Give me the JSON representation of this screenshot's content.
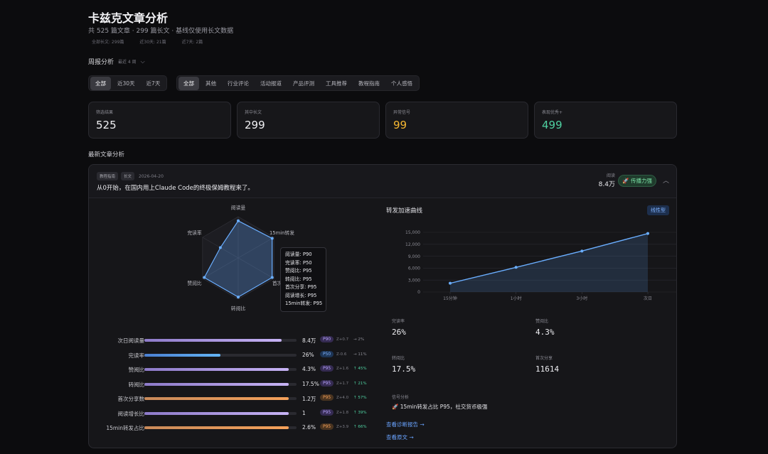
{
  "header": {
    "title": "卡兹克文章分析",
    "subtitle": "共 525 篇文章 · 299 篇长文 · 基线仅使用长文数据",
    "meta": [
      "全部长文: 299篇",
      "近30天: 21篇",
      "近7天: 2篇"
    ]
  },
  "weekly": {
    "label": "周报分析",
    "range": "最近 4 周"
  },
  "time_filter": [
    "全部",
    "近30天",
    "近7天"
  ],
  "category_filter": [
    "全部",
    "其他",
    "行业评论",
    "活动报道",
    "产品评测",
    "工具推荐",
    "教程指南",
    "个人感悟"
  ],
  "cards": [
    {
      "label": "筛选结果",
      "value": "525",
      "color": "#f0f0f3"
    },
    {
      "label": "其中长文",
      "value": "299",
      "color": "#f0f0f3"
    },
    {
      "label": "异常信号",
      "value": "99",
      "color": "#f5b731"
    },
    {
      "label": "表现优秀+",
      "value": "499",
      "color": "#4fd1a1"
    }
  ],
  "section_title": "最新文章分析",
  "article": {
    "tags": [
      "教程指南",
      "长文"
    ],
    "date": "2026-04-20",
    "title": "从0开始，在国内用上Claude Code的终极保姆教程来了。",
    "read_label": "阅读",
    "read_value": "8.4万",
    "badge": "🚀 传播力强"
  },
  "radar": {
    "axes": [
      "阅读量",
      "15min转发",
      "首次分享",
      "转阅比",
      "赞阅比",
      "完读率"
    ],
    "percentiles": [
      90,
      95,
      95,
      95,
      95,
      50
    ]
  },
  "tooltip": [
    "阅读量: P90",
    "完读率: P50",
    "赞阅比: P95",
    "转阅比: P95",
    "首次分享: P95",
    "阅读增长: P95",
    "15min转发: P95"
  ],
  "bars": [
    {
      "label": "次日阅读量",
      "value": "8.4万",
      "pct": "P90",
      "z": "Z+0.7",
      "delta": "→ 2%",
      "fill": 0.9,
      "color": "#b39ddb",
      "up": false
    },
    {
      "label": "完读率",
      "value": "26%",
      "pct": "P50",
      "z": "Z-0.6",
      "delta": "→ 11%",
      "fill": 0.5,
      "color": "#64b5f6",
      "up": false
    },
    {
      "label": "赞阅比",
      "value": "4.3%",
      "pct": "P95",
      "z": "Z+1.6",
      "delta": "↑ 45%",
      "fill": 0.95,
      "color": "#b39ddb",
      "up": true
    },
    {
      "label": "转阅比",
      "value": "17.5%",
      "pct": "P95",
      "z": "Z+1.7",
      "delta": "↑ 21%",
      "fill": 0.95,
      "color": "#b39ddb",
      "up": true
    },
    {
      "label": "首次分享数",
      "value": "1.2万",
      "pct": "P95",
      "z": "Z+4.0",
      "delta": "↑ 57%",
      "fill": 0.95,
      "color": "#f5a15a",
      "up": true
    },
    {
      "label": "阅读增长比",
      "value": "1",
      "pct": "P95",
      "z": "Z+1.8",
      "delta": "↑ 39%",
      "fill": 0.95,
      "color": "#b39ddb",
      "up": true
    },
    {
      "label": "15min转发占比",
      "value": "2.6%",
      "pct": "P95",
      "z": "Z+3.9",
      "delta": "↑ 66%",
      "fill": 0.95,
      "color": "#f5a15a",
      "up": true
    }
  ],
  "chart": {
    "title": "转发加速曲线",
    "mode": "线性型",
    "chart_data": {
      "type": "line",
      "categories": [
        "15分钟",
        "1小时",
        "3小时",
        "次日"
      ],
      "values": [
        2200,
        6200,
        10300,
        14700
      ],
      "yticks": [
        "15,000",
        "12,000",
        "9,000",
        "6,000",
        "3,000",
        "0"
      ],
      "ylim": [
        0,
        15000
      ]
    }
  },
  "stats": [
    {
      "label": "完读率",
      "value": "26%"
    },
    {
      "label": "赞阅比",
      "value": "4.3%"
    },
    {
      "label": "转阅比",
      "value": "17.5%"
    },
    {
      "label": "首次分享",
      "value": "11614"
    }
  ],
  "signal": {
    "label": "信号分析",
    "text": "🚀 15min转发占比 P95，社交货币极强"
  },
  "links": [
    "查看诊断报告 →",
    "查看原文 →"
  ]
}
